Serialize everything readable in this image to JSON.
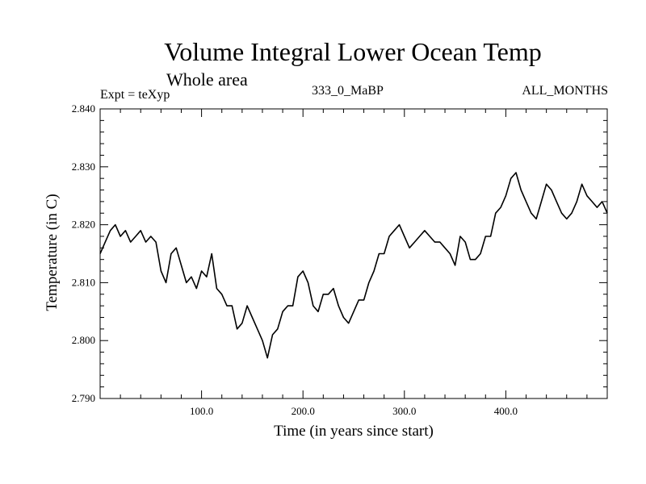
{
  "chart_data": {
    "type": "line",
    "title": "Volume Integral Lower Ocean Temp",
    "subtitle": "Whole area",
    "left_label": "Expt = teXyp",
    "center_label": "333_0_MaBP",
    "right_label": "ALL_MONTHS",
    "xlabel": "Time (in years since start)",
    "ylabel": "Temperature (in C)",
    "xlim": [
      0,
      500
    ],
    "ylim": [
      2.79,
      2.84
    ],
    "xticks": [
      100,
      200,
      300,
      400
    ],
    "xtick_labels": [
      "100.0",
      "200.0",
      "300.0",
      "400.0"
    ],
    "yticks": [
      2.79,
      2.8,
      2.81,
      2.82,
      2.83,
      2.84
    ],
    "ytick_labels": [
      "2.790",
      "2.800",
      "2.810",
      "2.820",
      "2.830",
      "2.840"
    ],
    "grid": false,
    "line_color": "#000000",
    "series": [
      {
        "x": [
          0,
          5,
          10,
          15,
          20,
          25,
          30,
          35,
          40,
          45,
          50,
          55,
          60,
          65,
          70,
          75,
          80,
          85,
          90,
          95,
          100,
          105,
          110,
          115,
          120,
          125,
          130,
          135,
          140,
          145,
          150,
          155,
          160,
          165,
          170,
          175,
          180,
          185,
          190,
          195,
          200,
          205,
          210,
          215,
          220,
          225,
          230,
          235,
          240,
          245,
          250,
          255,
          260,
          265,
          270,
          275,
          280,
          285,
          290,
          295,
          300,
          305,
          310,
          315,
          320,
          325,
          330,
          335,
          340,
          345,
          350,
          355,
          360,
          365,
          370,
          375,
          380,
          385,
          390,
          395,
          400,
          405,
          410,
          415,
          420,
          425,
          430,
          435,
          440,
          445,
          450,
          455,
          460,
          465,
          470,
          475,
          480,
          485,
          490,
          495,
          500
        ],
        "values": [
          2.815,
          2.817,
          2.819,
          2.82,
          2.818,
          2.819,
          2.817,
          2.818,
          2.819,
          2.817,
          2.818,
          2.817,
          2.812,
          2.81,
          2.815,
          2.816,
          2.813,
          2.81,
          2.811,
          2.809,
          2.812,
          2.811,
          2.815,
          2.809,
          2.808,
          2.806,
          2.806,
          2.802,
          2.803,
          2.806,
          2.804,
          2.802,
          2.8,
          2.797,
          2.801,
          2.802,
          2.805,
          2.806,
          2.806,
          2.811,
          2.812,
          2.81,
          2.806,
          2.805,
          2.808,
          2.808,
          2.809,
          2.806,
          2.804,
          2.803,
          2.805,
          2.807,
          2.807,
          2.81,
          2.812,
          2.815,
          2.815,
          2.818,
          2.819,
          2.82,
          2.818,
          2.816,
          2.817,
          2.818,
          2.819,
          2.818,
          2.817,
          2.817,
          2.816,
          2.815,
          2.813,
          2.818,
          2.817,
          2.814,
          2.814,
          2.815,
          2.818,
          2.818,
          2.822,
          2.823,
          2.825,
          2.828,
          2.829,
          2.826,
          2.824,
          2.822,
          2.821,
          2.824,
          2.827,
          2.826,
          2.824,
          2.822,
          2.821,
          2.822,
          2.824,
          2.827,
          2.825,
          2.824,
          2.823,
          2.824,
          2.822
        ]
      }
    ]
  }
}
